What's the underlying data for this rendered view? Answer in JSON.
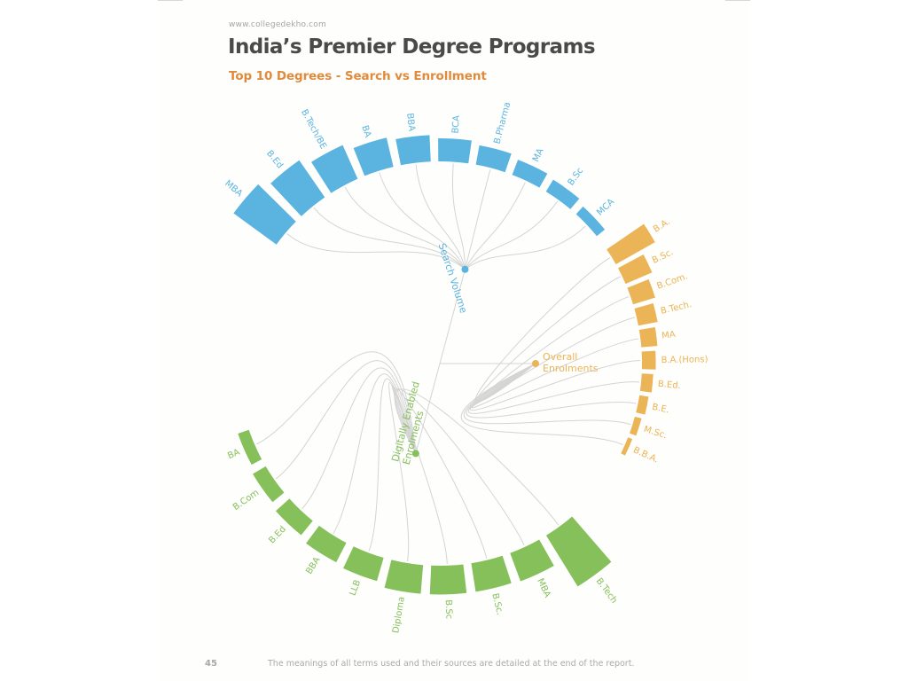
{
  "page": {
    "source": "www.collegedekho.com",
    "title": "India’s Premier Degree Programs",
    "subtitle": "Top 10 Degrees - Search vs Enrollment",
    "page_number": "45",
    "footnote": "The meanings of all terms used and their sources are detailed at the end of the report."
  },
  "colors": {
    "search": "#5bb4e0",
    "enrolment": "#ebb456",
    "digital": "#86c05b",
    "link": "#d4d4d4",
    "title": "#4a4a4a",
    "subtitle": "#e08a3c"
  },
  "chart_data": {
    "type": "radial-dendrogram",
    "title": "India’s Premier Degree Programs",
    "subtitle": "Top 10 Degrees - Search vs Enrollment",
    "groups": [
      {
        "name": "Search Volume",
        "color": "#5bb4e0",
        "labels": [
          "MBA",
          "B.Ed",
          "B.Tech/BE",
          "BA",
          "BBA",
          "BCA",
          "B.Pharma",
          "MA",
          "B.Sc",
          "MCA"
        ],
        "values": [
          4.6,
          3.9,
          3.2,
          2.6,
          2.3,
          2.0,
          1.7,
          1.4,
          1.2,
          0.9
        ]
      },
      {
        "name": "Overall Enrolments",
        "color": "#ebb456",
        "labels": [
          "B.A.",
          "B.Sc.",
          "B.Com.",
          "B.Tech.",
          "MA",
          "B.A.(Hons)",
          "B.Ed.",
          "B.E.",
          "M.Sc.",
          "B.B.A."
        ],
        "values": [
          3.9,
          2.5,
          2.0,
          1.7,
          1.4,
          1.2,
          1.0,
          0.8,
          0.6,
          0.4
        ]
      },
      {
        "name": "Digitally Enabled Enrolments",
        "color": "#86c05b",
        "labels": [
          "B.Tech",
          "MBA",
          "B.Sc.",
          "B.Sc",
          "Diploma",
          "LLB",
          "BBA",
          "B.Ed",
          "B.Com",
          "BA"
        ],
        "values": [
          5.2,
          2.6,
          2.5,
          2.5,
          2.5,
          2.1,
          1.9,
          1.6,
          1.3,
          1.0
        ]
      }
    ]
  }
}
